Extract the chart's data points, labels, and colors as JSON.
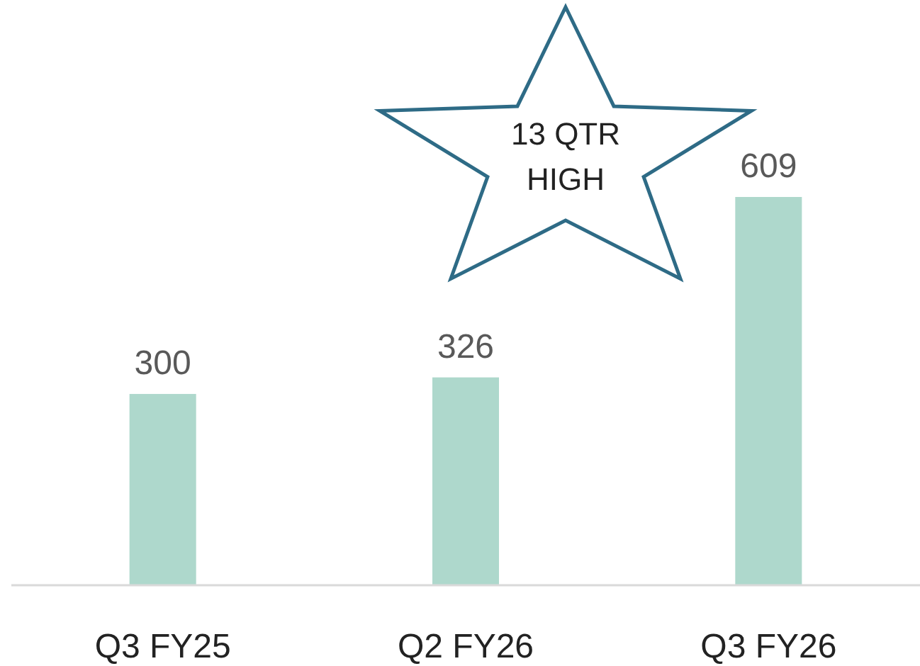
{
  "chart_data": {
    "type": "bar",
    "categories": [
      "Q3 FY25",
      "Q2 FY26",
      "Q3 FY26"
    ],
    "values": [
      300,
      326,
      609
    ],
    "color": "#aed8cc",
    "data_labels": true,
    "tick_labels": "x",
    "annotations": [
      "13 QTR\nHIGH"
    ]
  }
}
